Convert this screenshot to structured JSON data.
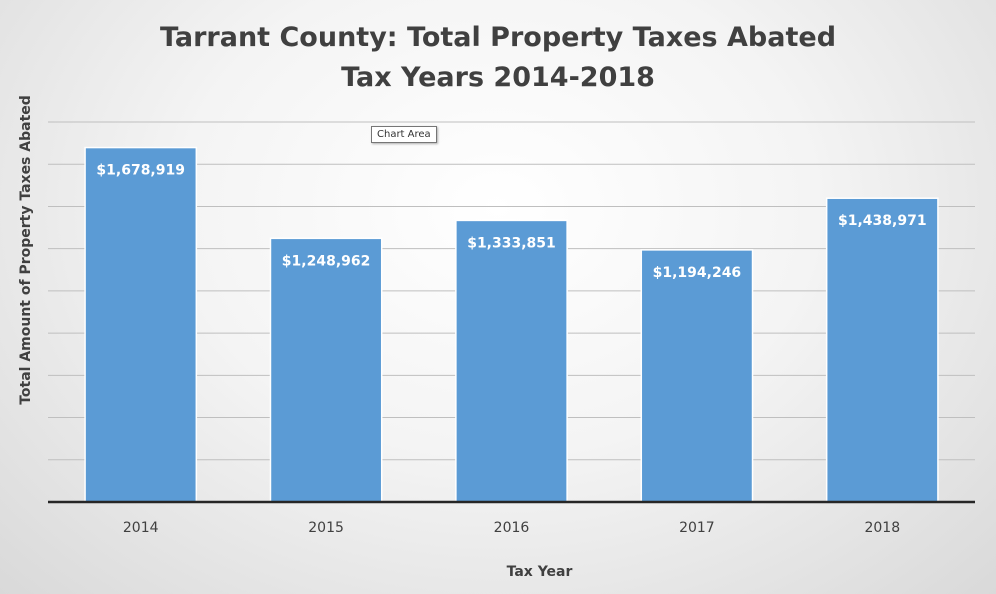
{
  "chart_data": {
    "type": "bar",
    "title_line1": "Tarrant County:  Total Property Taxes Abated",
    "title_line2": "Tax Years 2014-2018",
    "xlabel": "Tax Year",
    "ylabel": "Total Amount of Property Taxes Abated",
    "categories": [
      "2014",
      "2015",
      "2016",
      "2017",
      "2018"
    ],
    "values": [
      1678919,
      1248962,
      1333851,
      1194246,
      1438971
    ],
    "value_labels": [
      "$1,678,919",
      "$1,248,962",
      "$1,333,851",
      "$1,194,246",
      "$1,438,971"
    ],
    "ylim": [
      0,
      1800000
    ],
    "ytick_step": 200000,
    "grid": true,
    "bar_color": "#5b9bd5",
    "show_y_tick_labels": false
  },
  "tooltip": {
    "text": "Chart Area"
  }
}
